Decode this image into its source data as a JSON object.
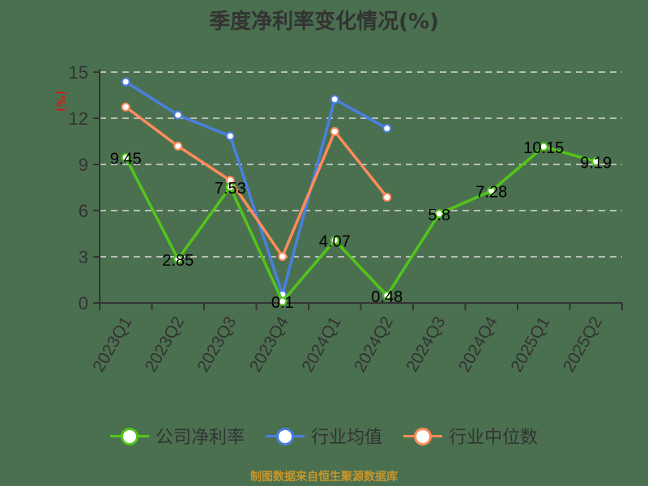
{
  "title": "季度净利率变化情况(%)",
  "source": "制图数据来自恒生聚源数据库",
  "colors": {
    "background": "#4b7050",
    "axis": "#333333",
    "grid": "#d9d9d9",
    "ylabel": "#ff0000"
  },
  "legend": [
    {
      "label": "公司净利率",
      "color": "#52c41a"
    },
    {
      "label": "行业均值",
      "color": "#4a7fe0"
    },
    {
      "label": "行业中位数",
      "color": "#ff8c5a"
    }
  ],
  "chart_data": {
    "type": "line",
    "title": "季度净利率变化情况(%)",
    "xlabel": "",
    "ylabel": "(%)",
    "ylim": [
      0,
      15
    ],
    "yticks": [
      0,
      3,
      6,
      9,
      12,
      15
    ],
    "grid": true,
    "legend_position": "bottom",
    "categories": [
      "2023Q1",
      "2023Q2",
      "2023Q3",
      "2023Q4",
      "2024Q1",
      "2024Q2",
      "2024Q3",
      "2024Q4",
      "2025Q1",
      "2025Q2"
    ],
    "series": [
      {
        "name": "公司净利率",
        "color": "#52c41a",
        "labels": true,
        "values": [
          9.45,
          2.85,
          7.53,
          0.1,
          4.07,
          0.48,
          5.8,
          7.28,
          10.15,
          9.19
        ]
      },
      {
        "name": "行业均值",
        "color": "#4a7fe0",
        "labels": false,
        "values": [
          14.37,
          12.21,
          10.84,
          0.55,
          13.23,
          11.34,
          null,
          null,
          null,
          null
        ]
      },
      {
        "name": "行业中位数",
        "color": "#ff8c5a",
        "labels": false,
        "values": [
          12.73,
          10.19,
          7.96,
          3.02,
          11.14,
          6.87,
          null,
          null,
          null,
          null
        ]
      }
    ]
  }
}
